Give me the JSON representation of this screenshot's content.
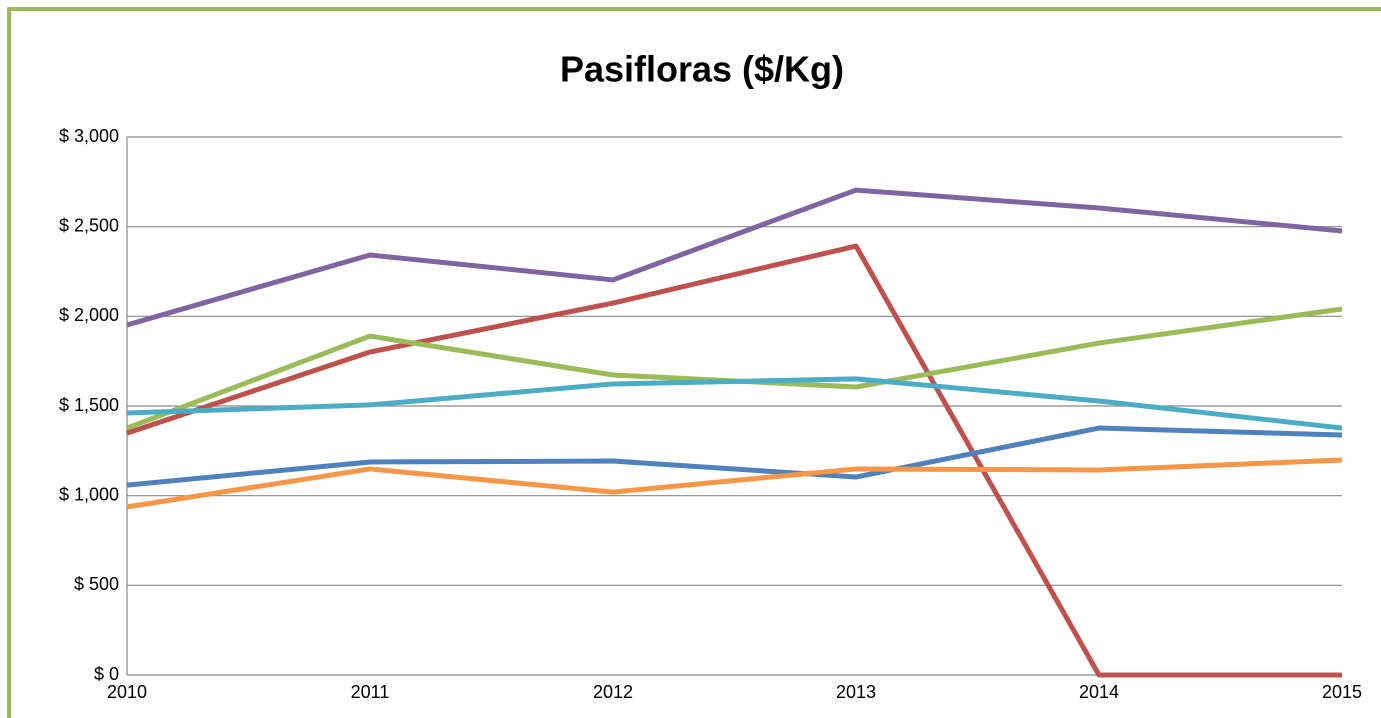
{
  "chart_data": {
    "type": "line",
    "title": "Pasifloras ($/Kg)",
    "categories": [
      "2010",
      "2011",
      "2012",
      "2013",
      "2014",
      "2015"
    ],
    "series": [
      {
        "color": "#8064a2",
        "values": [
          1952,
          2342,
          2203,
          2704,
          2604,
          2476
        ]
      },
      {
        "color": "#c0504d",
        "values": [
          1349,
          1801,
          2074,
          2392,
          0,
          0
        ]
      },
      {
        "color": "#9bbb59",
        "values": [
          1377,
          1890,
          1673,
          1606,
          1851,
          2041
        ]
      },
      {
        "color": "#4bacc6",
        "values": [
          1461,
          1506,
          1623,
          1651,
          1528,
          1377
        ]
      },
      {
        "color": "#4f81bd",
        "values": [
          1059,
          1188,
          1193,
          1104,
          1377,
          1338
        ]
      },
      {
        "color": "#f79646",
        "values": [
          937,
          1149,
          1020,
          1149,
          1143,
          1199
        ]
      }
    ],
    "ylim": [
      0,
      3000
    ],
    "yticks": [
      {
        "value": 0,
        "label": "$ 0"
      },
      {
        "value": 500,
        "label": "$ 500"
      },
      {
        "value": 1000,
        "label": "$ 1,000"
      },
      {
        "value": 1500,
        "label": "$ 1,500"
      },
      {
        "value": 2000,
        "label": "$ 2,000"
      },
      {
        "value": 2500,
        "label": "$ 2,500"
      },
      {
        "value": 3000,
        "label": "$ 3,000"
      }
    ],
    "grid": true
  }
}
